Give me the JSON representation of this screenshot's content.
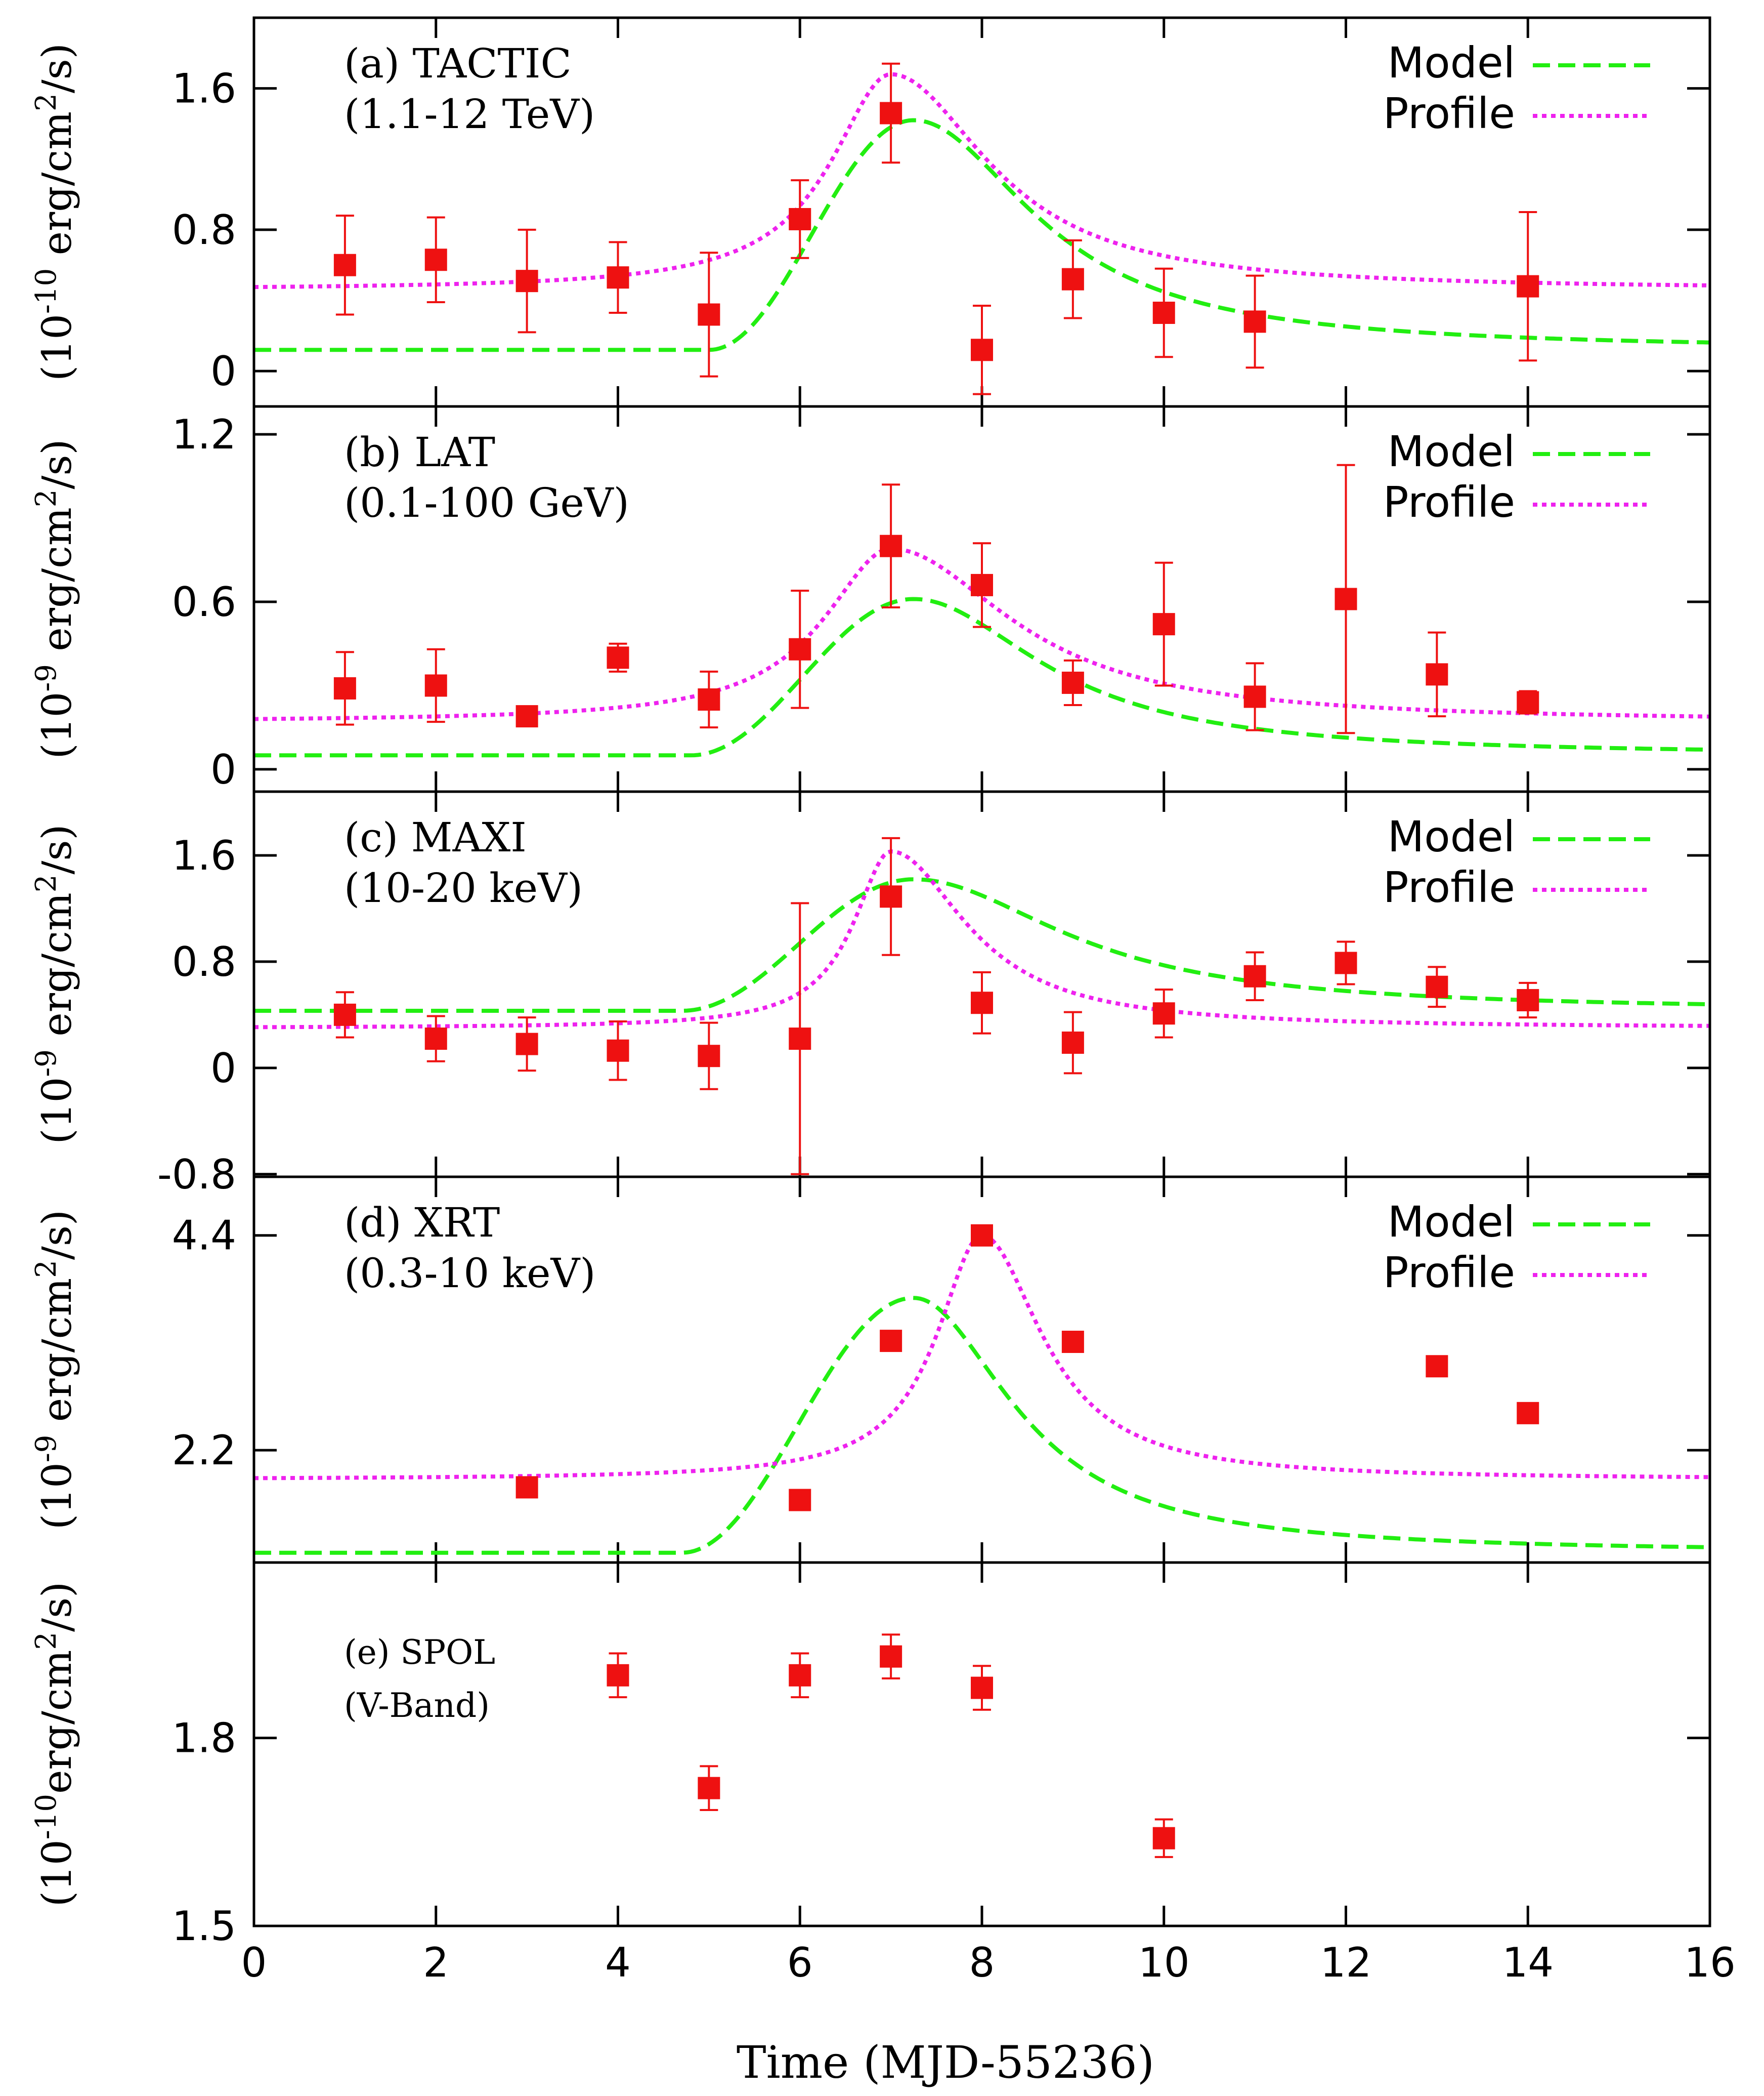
{
  "xlabel": "Time (MJD-55236)",
  "xlim": [
    0,
    16
  ],
  "xticks": [
    0,
    2,
    4,
    6,
    8,
    10,
    12,
    14,
    16
  ],
  "legend_labels": {
    "model": "Model",
    "profile": "Profile"
  },
  "colors": {
    "model": "#22ee11",
    "profile": "#ee22ee",
    "data": "#ee1111",
    "axes": "#000000"
  },
  "chart_data": [
    {
      "type": "scatter",
      "panel": "a",
      "label_line1": "(a) TACTIC",
      "label_line2": "(1.1-12 TeV)",
      "ylabel": {
        "base": "(10",
        "exp": "-10",
        "mid": " erg/cm",
        "sq": "2",
        "end": "/s)"
      },
      "ylim": [
        -0.2,
        2.0
      ],
      "yticks": [
        0,
        0.8,
        1.6
      ],
      "ytick_labels": [
        "0",
        "0.8",
        "1.6"
      ],
      "legend": true,
      "points": [
        {
          "x": 1,
          "y": 0.6,
          "err": 0.28
        },
        {
          "x": 2,
          "y": 0.63,
          "err": 0.24
        },
        {
          "x": 3,
          "y": 0.51,
          "err": 0.29
        },
        {
          "x": 4,
          "y": 0.53,
          "err": 0.2
        },
        {
          "x": 5,
          "y": 0.32,
          "err": 0.35
        },
        {
          "x": 6,
          "y": 0.86,
          "err": 0.22
        },
        {
          "x": 7,
          "y": 1.46,
          "err": 0.28
        },
        {
          "x": 8,
          "y": 0.12,
          "err": 0.25
        },
        {
          "x": 9,
          "y": 0.52,
          "err": 0.22
        },
        {
          "x": 10,
          "y": 0.33,
          "err": 0.25
        },
        {
          "x": 11,
          "y": 0.28,
          "err": 0.26
        },
        {
          "x": 14,
          "y": 0.48,
          "err": 0.42
        }
      ],
      "model_curve": {
        "base": 0.12,
        "peak": 1.42,
        "t_rise": 5.0,
        "t_peak": 7.25,
        "rise_width": 0.8,
        "decay_tau": 1.6,
        "tail_offset": 0.0
      },
      "profile_curve": {
        "base": 0.46,
        "peak": 1.68,
        "t_peak": 7.0,
        "rise_tau": 0.8,
        "decay_tau": 1.3
      }
    },
    {
      "type": "scatter",
      "panel": "b",
      "label_line1": "(b) LAT",
      "label_line2": "(0.1-100 GeV)",
      "ylabel": {
        "base": "(10",
        "exp": "-9",
        "mid": " erg/cm",
        "sq": "2",
        "end": "/s)"
      },
      "ylim": [
        -0.08,
        1.3
      ],
      "yticks": [
        0,
        0.6,
        1.2
      ],
      "ytick_labels": [
        "0",
        "0.6",
        "1.2"
      ],
      "legend": true,
      "points": [
        {
          "x": 1,
          "y": 0.29,
          "err": 0.13
        },
        {
          "x": 2,
          "y": 0.3,
          "err": 0.13
        },
        {
          "x": 3,
          "y": 0.19,
          "err": 0.02
        },
        {
          "x": 4,
          "y": 0.4,
          "err": 0.05
        },
        {
          "x": 5,
          "y": 0.25,
          "err": 0.1
        },
        {
          "x": 6,
          "y": 0.43,
          "err": 0.21
        },
        {
          "x": 7,
          "y": 0.8,
          "err": 0.22
        },
        {
          "x": 8,
          "y": 0.66,
          "err": 0.15
        },
        {
          "x": 9,
          "y": 0.31,
          "err": 0.08
        },
        {
          "x": 10,
          "y": 0.52,
          "err": 0.22
        },
        {
          "x": 11,
          "y": 0.26,
          "err": 0.12
        },
        {
          "x": 12,
          "y": 0.61,
          "err": 0.48
        },
        {
          "x": 13,
          "y": 0.34,
          "err": 0.15
        },
        {
          "x": 14,
          "y": 0.24,
          "err": 0.04
        }
      ],
      "model_curve": {
        "base": 0.05,
        "peak": 0.61,
        "t_rise": 4.8,
        "t_peak": 7.25,
        "rise_width": 0.8,
        "decay_tau": 1.7,
        "tail_offset": 0.0
      },
      "profile_curve": {
        "base": 0.17,
        "peak": 0.79,
        "t_peak": 7.0,
        "rise_tau": 0.9,
        "decay_tau": 1.6
      }
    },
    {
      "type": "scatter",
      "panel": "c",
      "label_line1": "(c) MAXI",
      "label_line2": "(10-20 keV)",
      "ylabel": {
        "base": "(10",
        "exp": "-9",
        "mid": " erg/cm",
        "sq": "2",
        "end": "/s)"
      },
      "ylim": [
        -0.82,
        2.08
      ],
      "yticks": [
        -0.8,
        0,
        0.8,
        1.6
      ],
      "ytick_labels": [
        "-0.8",
        "0",
        "0.8",
        "1.6"
      ],
      "legend": true,
      "points": [
        {
          "x": 1,
          "y": 0.4,
          "err": 0.17
        },
        {
          "x": 2,
          "y": 0.22,
          "err": 0.17
        },
        {
          "x": 3,
          "y": 0.18,
          "err": 0.2
        },
        {
          "x": 4,
          "y": 0.13,
          "err": 0.22
        },
        {
          "x": 5,
          "y": 0.09,
          "err": 0.25
        },
        {
          "x": 6,
          "y": 0.22,
          "err": 1.02
        },
        {
          "x": 7,
          "y": 1.29,
          "err": 0.44
        },
        {
          "x": 8,
          "y": 0.49,
          "err": 0.23
        },
        {
          "x": 9,
          "y": 0.19,
          "err": 0.23
        },
        {
          "x": 10,
          "y": 0.41,
          "err": 0.18
        },
        {
          "x": 11,
          "y": 0.69,
          "err": 0.18
        },
        {
          "x": 12,
          "y": 0.79,
          "err": 0.16
        },
        {
          "x": 13,
          "y": 0.61,
          "err": 0.15
        },
        {
          "x": 14,
          "y": 0.51,
          "err": 0.13
        }
      ],
      "model_curve": {
        "base": 0.43,
        "peak": 1.42,
        "t_rise": 4.7,
        "t_peak": 7.25,
        "rise_width": 0.9,
        "decay_tau": 2.0,
        "tail_offset": 0.0
      },
      "profile_curve": {
        "base": 0.3,
        "peak": 1.63,
        "t_peak": 7.0,
        "rise_tau": 0.5,
        "decay_tau": 1.0
      }
    },
    {
      "type": "scatter",
      "panel": "d",
      "label_line1": "(d) XRT",
      "label_line2": "(0.3-10 keV)",
      "ylabel": {
        "base": "(10",
        "exp": "-9",
        "mid": " erg/cm",
        "sq": "2",
        "end": "/s)"
      },
      "ylim": [
        1.05,
        5.0
      ],
      "yticks": [
        2.2,
        4.4
      ],
      "ytick_labels": [
        "2.2",
        "4.4"
      ],
      "legend": true,
      "points": [
        {
          "x": 3,
          "y": 1.82,
          "err": 0
        },
        {
          "x": 6,
          "y": 1.69,
          "err": 0
        },
        {
          "x": 7,
          "y": 3.32,
          "err": 0
        },
        {
          "x": 8,
          "y": 4.4,
          "err": 0
        },
        {
          "x": 9,
          "y": 3.31,
          "err": 0
        },
        {
          "x": 13,
          "y": 3.06,
          "err": 0
        },
        {
          "x": 14,
          "y": 2.58,
          "err": 0
        }
      ],
      "model_curve": {
        "base": 1.15,
        "peak": 3.76,
        "t_rise": 4.7,
        "t_peak": 7.25,
        "rise_width": 0.75,
        "decay_tau": 1.3,
        "tail_offset": 0.0
      },
      "profile_curve": {
        "base": 1.9,
        "peak": 4.4,
        "t_peak": 8.0,
        "rise_tau": 0.6,
        "decay_tau": 0.8
      }
    },
    {
      "type": "scatter",
      "panel": "e",
      "label_line1": "(e) SPOL",
      "label_line2": "(V-Band)",
      "ylabel": {
        "base": "(10",
        "exp": "-10",
        "mid": "erg/cm",
        "sq": "2",
        "end": "/s)"
      },
      "ylim": [
        1.5,
        2.08
      ],
      "yticks": [
        1.5,
        1.8
      ],
      "ytick_labels": [
        "1.5",
        "1.8"
      ],
      "legend": false,
      "points": [
        {
          "x": 4,
          "y": 1.9,
          "err": 0.035
        },
        {
          "x": 5,
          "y": 1.72,
          "err": 0.035
        },
        {
          "x": 6,
          "y": 1.9,
          "err": 0.035
        },
        {
          "x": 7,
          "y": 1.93,
          "err": 0.035
        },
        {
          "x": 8,
          "y": 1.88,
          "err": 0.035
        },
        {
          "x": 10,
          "y": 1.64,
          "err": 0.03
        }
      ]
    }
  ]
}
